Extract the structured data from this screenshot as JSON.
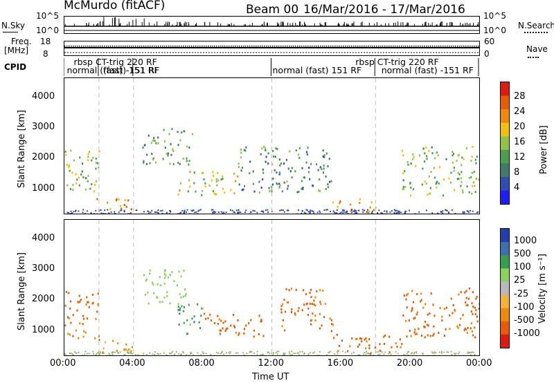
{
  "header": {
    "station": "McMurdo (fitACF)",
    "beam": "Beam 00",
    "date_range": "16/Mar/2016 - 17/Mar/2016"
  },
  "top_panels": {
    "nsky_label": "N.Sky",
    "nsearch_label": "N.Search",
    "freq_label": "Freq.",
    "freq_unit": "[MHz]",
    "nave_label": "Nave",
    "cpid_label": "CPID",
    "nsky_ticks": [
      "10^5",
      "10^0"
    ],
    "nsearch_ticks": [
      "10^5",
      "10^0"
    ],
    "freq_ticks": [
      "18",
      "8"
    ],
    "nave_ticks": [
      "60",
      "0"
    ],
    "cpid_labels": [
      {
        "text": "rbsp CT-trig 220 RF",
        "row": 1,
        "t": 0.5
      },
      {
        "text": "normal (fast) -151 RF",
        "row": 2,
        "t": 0.1
      },
      {
        "text": "(fast)-151 RF",
        "row": 2,
        "t": 2.2
      },
      {
        "text": "normal (fast) 151 RF",
        "row": 2,
        "t": 12.0
      },
      {
        "text": "rbsp CT-trig 220 RF",
        "row": 1,
        "t": 16.8
      },
      {
        "text": "normal (fast) -151 RF",
        "row": 2,
        "t": 18.3
      }
    ]
  },
  "power_panel": {
    "ylabel": "Slant Range [km]",
    "cbar_label": "Power [dB]",
    "cbar_ticks": [
      "28",
      "24",
      "20",
      "16",
      "12",
      "8",
      "4"
    ]
  },
  "velocity_panel": {
    "ylabel": "Slant Range [km]",
    "cbar_label": "Velocity [m s⁻¹]",
    "cbar_ticks": [
      "1000",
      "500",
      "100",
      "25",
      "-25",
      "-100",
      "-500",
      "-1000"
    ]
  },
  "xaxis": {
    "label": "Time UT",
    "ticks": [
      "00:00",
      "04:00",
      "08:00",
      "12:00",
      "16:00",
      "20:00",
      "00:00"
    ]
  },
  "yaxis_ticks": [
    "1000",
    "2000",
    "3000",
    "4000"
  ],
  "chart_data": [
    {
      "type": "heatmap",
      "title": "Power [dB]",
      "xlabel": "Time UT",
      "ylabel": "Slant Range [km]",
      "xlim": [
        0,
        24
      ],
      "ylim": [
        180,
        4600
      ],
      "zlim": [
        0,
        30
      ],
      "blobs": [
        {
          "t0": 0.0,
          "t1": 2.0,
          "r0": 700,
          "r1": 2300,
          "z": 14
        },
        {
          "t0": 1.8,
          "t1": 4.0,
          "r0": 250,
          "r1": 700,
          "z": 22
        },
        {
          "t0": 4.5,
          "t1": 7.5,
          "r0": 1800,
          "r1": 3000,
          "z": 12
        },
        {
          "t0": 6.5,
          "t1": 10.0,
          "r0": 800,
          "r1": 1600,
          "z": 16
        },
        {
          "t0": 10.0,
          "t1": 15.5,
          "r0": 900,
          "r1": 2400,
          "z": 10
        },
        {
          "t0": 15.5,
          "t1": 18.0,
          "r0": 250,
          "r1": 700,
          "z": 22
        },
        {
          "t0": 19.5,
          "t1": 24.0,
          "r0": 800,
          "r1": 2400,
          "z": 14
        }
      ]
    },
    {
      "type": "heatmap",
      "title": "Velocity",
      "xlabel": "Time UT",
      "ylabel": "Slant Range [km]",
      "xlim": [
        0,
        24
      ],
      "ylim": [
        180,
        4600
      ],
      "zlim": [
        -1000,
        1000
      ],
      "blobs": [
        {
          "t0": 0.0,
          "t1": 2.0,
          "r0": 700,
          "r1": 2300,
          "z": -150
        },
        {
          "t0": 2.0,
          "t1": 4.0,
          "r0": 250,
          "r1": 700,
          "z": -60
        },
        {
          "t0": 4.5,
          "t1": 7.0,
          "r0": 1800,
          "r1": 3000,
          "z": 300
        },
        {
          "t0": 6.5,
          "t1": 8.0,
          "r0": 800,
          "r1": 1900,
          "z": 700
        },
        {
          "t0": 8.0,
          "t1": 11.5,
          "r0": 800,
          "r1": 1600,
          "z": -200
        },
        {
          "t0": 12.5,
          "t1": 15.5,
          "r0": 1000,
          "r1": 2400,
          "z": -150
        },
        {
          "t0": 15.5,
          "t1": 19.5,
          "r0": 250,
          "r1": 900,
          "z": -150
        },
        {
          "t0": 19.5,
          "t1": 24.0,
          "r0": 800,
          "r1": 2400,
          "z": -150
        }
      ]
    }
  ],
  "colors": {
    "power_scale": [
      "#1d1dff",
      "#2f4fb0",
      "#3f7a6a",
      "#4aa04a",
      "#8ec63f",
      "#f2c200",
      "#f08a00",
      "#ec5a00",
      "#e01a10"
    ],
    "velocity_scale": [
      "#e01a10",
      "#ec5a00",
      "#f08a00",
      "#f7b234",
      "#b9b9b9",
      "#8ad35a",
      "#35a24a",
      "#3e6fb0",
      "#2040b0"
    ],
    "ground_scatter": "#8c8c8c"
  }
}
